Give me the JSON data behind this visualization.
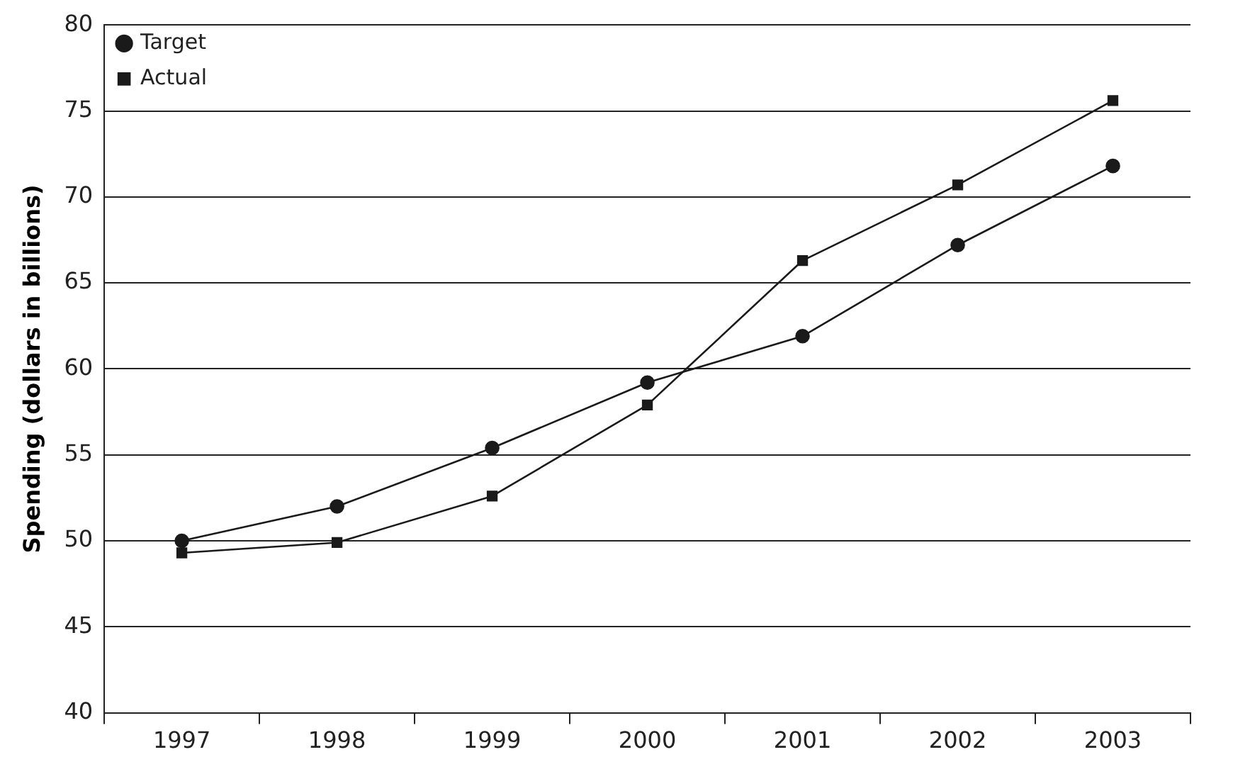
{
  "chart_data": {
    "type": "line",
    "ylabel": "Spending (dollars in billions)",
    "categories": [
      "1997",
      "1998",
      "1999",
      "2000",
      "2001",
      "2002",
      "2003"
    ],
    "series": [
      {
        "name": "Target",
        "color": "#1a1a1a",
        "marker": "circle",
        "values": [
          50.0,
          52.0,
          55.4,
          59.2,
          61.9,
          67.2,
          71.8
        ]
      },
      {
        "name": "Actual",
        "color": "#1a1a1a",
        "marker": "square",
        "values": [
          49.3,
          49.9,
          52.6,
          57.9,
          66.3,
          70.7,
          75.6
        ]
      }
    ],
    "ylim": [
      40,
      80
    ],
    "yticks": [
      40,
      45,
      50,
      55,
      60,
      65,
      70,
      75,
      80
    ],
    "grid": "y",
    "legend": "top left",
    "line_style": "solid"
  }
}
